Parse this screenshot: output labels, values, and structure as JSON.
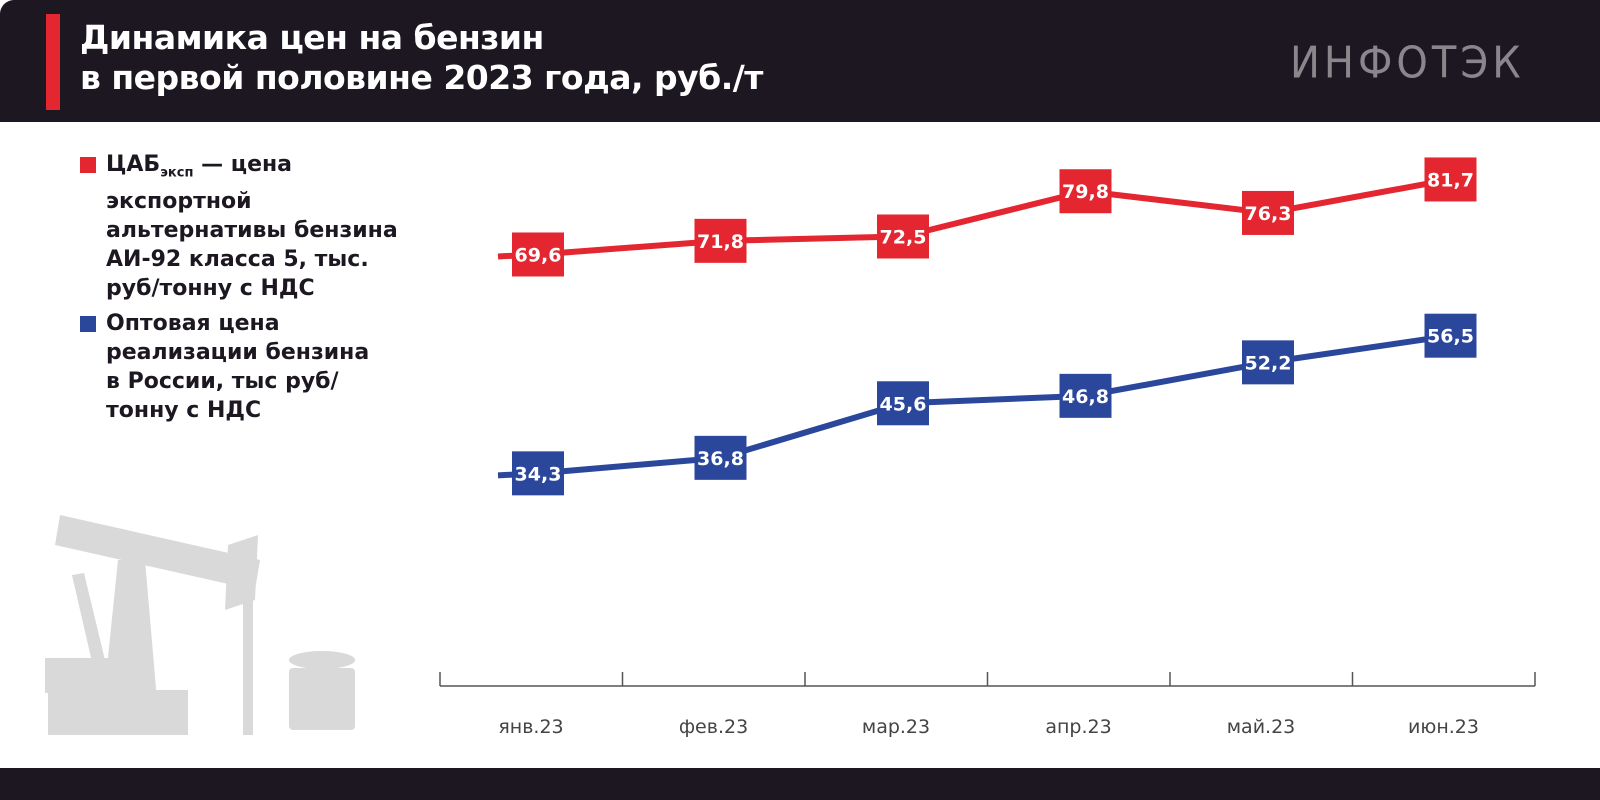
{
  "header": {
    "title_line1": "Динамика цен на бензин",
    "title_line2": "в первой половине 2023 года, руб./т",
    "logo": "ИНФОТЭК"
  },
  "legend": [
    {
      "main": "ЦАБ",
      "sub": "эксп",
      "rest": " — цена экспортной альтернативы бензина АИ-92 класса 5, тыс. руб/тонну с НДС",
      "color": "#e3262f"
    },
    {
      "main": "Оптовая цена реализации бензина в России, тыс руб/тонну с НДС",
      "sub": "",
      "rest": "",
      "color": "#2b479c"
    }
  ],
  "chart_data": {
    "type": "line",
    "title": "Динамика цен на бензин в первой половине 2023 года, руб./т",
    "categories": [
      "янв.23",
      "фев.23",
      "мар.23",
      "апр.23",
      "май.23",
      "июн.23"
    ],
    "series": [
      {
        "name": "ЦАБэксп — цена экспортной альтернативы бензина АИ-92 класса 5, тыс. руб/тонну с НДС",
        "color": "#e3262f",
        "values": [
          69.6,
          71.8,
          72.5,
          79.8,
          76.3,
          81.7
        ],
        "labels": [
          "69,6",
          "71,8",
          "72,5",
          "79,8",
          "76,3",
          "81,7"
        ]
      },
      {
        "name": "Оптовая цена реализации бензина в России, тыс руб/тонну с НДС",
        "color": "#2b479c",
        "values": [
          34.3,
          36.8,
          45.6,
          46.8,
          52.2,
          56.5
        ],
        "labels": [
          "34,3",
          "36,8",
          "45,6",
          "46,8",
          "52,2",
          "56,5"
        ]
      }
    ],
    "ylim": [
      0,
      110
    ],
    "grid": false,
    "legend": "left"
  }
}
